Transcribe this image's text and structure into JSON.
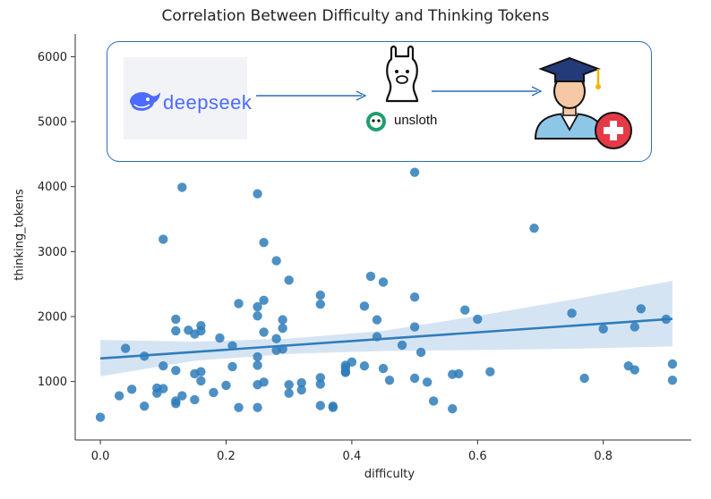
{
  "chart_data": {
    "type": "scatter",
    "title": "Correlation Between Difficulty and Thinking Tokens",
    "xlabel": "difficulty",
    "ylabel": "thinking_tokens",
    "xlim": [
      -0.04,
      0.94
    ],
    "ylim": [
      100,
      6350
    ],
    "xticks": [
      "0.0",
      "0.2",
      "0.4",
      "0.6",
      "0.8"
    ],
    "xtick_values": [
      0,
      0.2,
      0.4,
      0.6,
      0.8
    ],
    "yticks": [
      "1000",
      "2000",
      "3000",
      "4000",
      "5000",
      "6000"
    ],
    "ytick_values": [
      1000,
      2000,
      3000,
      4000,
      5000,
      6000
    ],
    "grid": false,
    "point_color": "#2f7dba",
    "regression": {
      "x": [
        0.0,
        0.91
      ],
      "y": [
        1355,
        1965
      ],
      "color": "#2f7dba"
    },
    "confidence_band": {
      "x": [
        0.0,
        0.15,
        0.3,
        0.45,
        0.6,
        0.75,
        0.91
      ],
      "lower": [
        1080,
        1320,
        1425,
        1470,
        1485,
        1505,
        1540
      ],
      "upper": [
        1640,
        1615,
        1660,
        1780,
        2010,
        2260,
        2550
      ],
      "color": "#c7dbef"
    },
    "points": [
      [
        0.0,
        450
      ],
      [
        0.03,
        780
      ],
      [
        0.04,
        1510
      ],
      [
        0.05,
        880
      ],
      [
        0.07,
        620
      ],
      [
        0.07,
        1390
      ],
      [
        0.09,
        900
      ],
      [
        0.09,
        820
      ],
      [
        0.1,
        1240
      ],
      [
        0.1,
        890
      ],
      [
        0.1,
        3190
      ],
      [
        0.12,
        700
      ],
      [
        0.12,
        660
      ],
      [
        0.12,
        1170
      ],
      [
        0.12,
        1780
      ],
      [
        0.12,
        1960
      ],
      [
        0.13,
        3990
      ],
      [
        0.13,
        780
      ],
      [
        0.14,
        1790
      ],
      [
        0.15,
        720
      ],
      [
        0.15,
        1120
      ],
      [
        0.15,
        1730
      ],
      [
        0.16,
        1010
      ],
      [
        0.16,
        1150
      ],
      [
        0.16,
        1780
      ],
      [
        0.16,
        1860
      ],
      [
        0.18,
        830
      ],
      [
        0.19,
        1670
      ],
      [
        0.2,
        940
      ],
      [
        0.21,
        1550
      ],
      [
        0.21,
        1230
      ],
      [
        0.22,
        2200
      ],
      [
        0.22,
        600
      ],
      [
        0.25,
        3890
      ],
      [
        0.25,
        2010
      ],
      [
        0.25,
        2150
      ],
      [
        0.25,
        1380
      ],
      [
        0.25,
        1250
      ],
      [
        0.25,
        950
      ],
      [
        0.25,
        600
      ],
      [
        0.26,
        3140
      ],
      [
        0.26,
        2250
      ],
      [
        0.26,
        1760
      ],
      [
        0.26,
        990
      ],
      [
        0.28,
        2860
      ],
      [
        0.28,
        1660
      ],
      [
        0.28,
        1480
      ],
      [
        0.29,
        1950
      ],
      [
        0.29,
        1820
      ],
      [
        0.29,
        1500
      ],
      [
        0.3,
        2560
      ],
      [
        0.3,
        950
      ],
      [
        0.3,
        820
      ],
      [
        0.32,
        980
      ],
      [
        0.32,
        870
      ],
      [
        0.35,
        2330
      ],
      [
        0.35,
        2190
      ],
      [
        0.35,
        1060
      ],
      [
        0.35,
        960
      ],
      [
        0.35,
        630
      ],
      [
        0.37,
        600
      ],
      [
        0.37,
        620
      ],
      [
        0.39,
        1250
      ],
      [
        0.39,
        1210
      ],
      [
        0.39,
        1150
      ],
      [
        0.39,
        1140
      ],
      [
        0.4,
        1300
      ],
      [
        0.42,
        2160
      ],
      [
        0.42,
        1240
      ],
      [
        0.43,
        2620
      ],
      [
        0.44,
        1950
      ],
      [
        0.44,
        1690
      ],
      [
        0.45,
        2530
      ],
      [
        0.45,
        1200
      ],
      [
        0.46,
        1020
      ],
      [
        0.48,
        1560
      ],
      [
        0.5,
        4220
      ],
      [
        0.5,
        2300
      ],
      [
        0.5,
        1840
      ],
      [
        0.5,
        1050
      ],
      [
        0.51,
        1450
      ],
      [
        0.52,
        990
      ],
      [
        0.53,
        700
      ],
      [
        0.56,
        580
      ],
      [
        0.56,
        1110
      ],
      [
        0.57,
        1120
      ],
      [
        0.58,
        2100
      ],
      [
        0.6,
        1960
      ],
      [
        0.62,
        1150
      ],
      [
        0.69,
        3360
      ],
      [
        0.75,
        2050
      ],
      [
        0.77,
        1050
      ],
      [
        0.8,
        1810
      ],
      [
        0.84,
        1240
      ],
      [
        0.85,
        1840
      ],
      [
        0.85,
        1180
      ],
      [
        0.86,
        2120
      ],
      [
        0.9,
        1960
      ],
      [
        0.91,
        1270
      ],
      [
        0.91,
        1020
      ]
    ]
  },
  "overlay": {
    "deepseek_text": "deepseek",
    "unsloth_text": "unsloth",
    "border_color": "#2f6db5"
  }
}
